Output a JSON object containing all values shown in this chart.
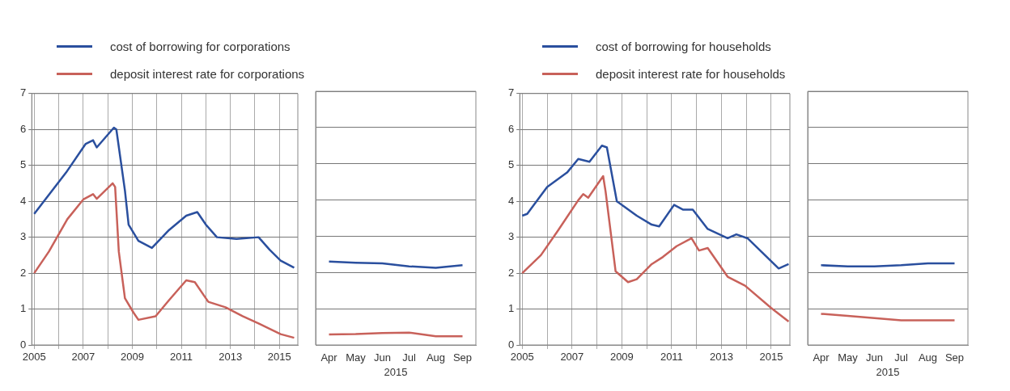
{
  "chart_data": [
    {
      "type": "line",
      "legend": "top",
      "grid": true,
      "xlim": [
        2004.9,
        2015.75
      ],
      "ylim": [
        0,
        7
      ],
      "yticks": [
        0,
        1,
        2,
        3,
        4,
        5,
        6,
        7
      ],
      "xticks": [
        2005,
        {
          "value": 2006,
          "label": null
        },
        2007,
        {
          "value": 2008,
          "label": null
        },
        2009,
        {
          "value": 2010,
          "label": null
        },
        2011,
        {
          "value": 2012,
          "label": null
        },
        2013,
        {
          "value": 2014,
          "label": null
        },
        2015
      ],
      "series": [
        {
          "name": "cost of borrowing for corporations",
          "color": "#2a4f9e",
          "x": [
            2005.0,
            2006.3,
            2007.1,
            2007.4,
            2007.55,
            2008.25,
            2008.35,
            2008.7,
            2008.85,
            2009.25,
            2009.8,
            2010.5,
            2011.2,
            2011.65,
            2012.0,
            2012.45,
            2013.25,
            2014.15,
            2014.6,
            2015.05,
            2015.6
          ],
          "values": [
            3.65,
            4.8,
            5.6,
            5.7,
            5.5,
            6.05,
            6.0,
            4.3,
            3.35,
            2.9,
            2.7,
            3.2,
            3.6,
            3.7,
            3.35,
            3.0,
            2.95,
            3.0,
            2.65,
            2.35,
            2.15
          ]
        },
        {
          "name": "deposit interest rate for corporations",
          "color": "#c8615a",
          "x": [
            2005.0,
            2005.6,
            2006.35,
            2007.0,
            2007.4,
            2007.55,
            2008.2,
            2008.3,
            2008.45,
            2008.7,
            2009.05,
            2009.25,
            2009.95,
            2010.5,
            2011.2,
            2011.55,
            2012.1,
            2012.8,
            2013.5,
            2014.15,
            2015.05,
            2015.6
          ],
          "values": [
            2.0,
            2.6,
            3.5,
            4.05,
            4.2,
            4.07,
            4.5,
            4.4,
            2.6,
            1.3,
            0.9,
            0.7,
            0.8,
            1.25,
            1.8,
            1.75,
            1.2,
            1.05,
            0.8,
            0.6,
            0.3,
            0.2
          ]
        }
      ]
    },
    {
      "type": "line",
      "grid": "y",
      "tick_labels": "x",
      "xlabel": "2015",
      "ylim": [
        0,
        7
      ],
      "yticks": [
        0,
        1,
        2,
        3,
        4,
        5,
        6,
        7
      ],
      "categories": [
        "Apr",
        "May",
        "Jun",
        "Jul",
        "Aug",
        "Sep"
      ],
      "series": [
        {
          "color": "#2a4f9e",
          "values": [
            2.3,
            2.27,
            2.25,
            2.17,
            2.13,
            2.2
          ]
        },
        {
          "color": "#c8615a",
          "values": [
            0.29,
            0.3,
            0.33,
            0.34,
            0.24,
            0.24
          ]
        }
      ]
    },
    {
      "type": "line",
      "legend": "top",
      "grid": true,
      "xlim": [
        2004.9,
        2015.75
      ],
      "ylim": [
        0,
        7
      ],
      "yticks": [
        0,
        1,
        2,
        3,
        4,
        5,
        6,
        7
      ],
      "xticks": [
        2005,
        {
          "value": 2006,
          "label": null
        },
        2007,
        {
          "value": 2008,
          "label": null
        },
        2009,
        {
          "value": 2010,
          "label": null
        },
        2011,
        {
          "value": 2012,
          "label": null
        },
        2013,
        {
          "value": 2014,
          "label": null
        },
        2015
      ],
      "series": [
        {
          "name": "cost of borrowing for households",
          "color": "#2a4f9e",
          "x": [
            2005.0,
            2005.2,
            2006.0,
            2006.8,
            2007.25,
            2007.7,
            2008.2,
            2008.4,
            2008.8,
            2009.6,
            2010.2,
            2010.5,
            2011.1,
            2011.45,
            2011.85,
            2012.45,
            2013.25,
            2013.6,
            2014.05,
            2015.3,
            2015.7
          ],
          "values": [
            3.6,
            3.65,
            4.4,
            4.8,
            5.18,
            5.1,
            5.55,
            5.5,
            4.0,
            3.6,
            3.35,
            3.3,
            3.9,
            3.77,
            3.77,
            3.23,
            2.97,
            3.08,
            2.97,
            2.13,
            2.25
          ]
        },
        {
          "name": "deposit interest rate for households",
          "color": "#c8615a",
          "x": [
            2005.0,
            2005.75,
            2006.45,
            2007.25,
            2007.45,
            2007.65,
            2008.25,
            2008.35,
            2008.75,
            2009.25,
            2009.6,
            2010.2,
            2010.65,
            2011.2,
            2011.8,
            2012.1,
            2012.45,
            2013.25,
            2013.95,
            2015.0,
            2015.7
          ],
          "values": [
            2.0,
            2.5,
            3.2,
            4.03,
            4.2,
            4.1,
            4.7,
            4.26,
            2.05,
            1.75,
            1.83,
            2.25,
            2.45,
            2.75,
            2.97,
            2.63,
            2.7,
            1.9,
            1.65,
            1.03,
            0.65
          ]
        }
      ]
    },
    {
      "type": "line",
      "grid": "y",
      "tick_labels": "x",
      "xlabel": "2015",
      "ylim": [
        0,
        7
      ],
      "yticks": [
        0,
        1,
        2,
        3,
        4,
        5,
        6,
        7
      ],
      "categories": [
        "Apr",
        "May",
        "Jun",
        "Jul",
        "Aug",
        "Sep"
      ],
      "series": [
        {
          "color": "#2a4f9e",
          "values": [
            2.2,
            2.17,
            2.17,
            2.2,
            2.25,
            2.25
          ]
        },
        {
          "color": "#c8615a",
          "values": [
            0.86,
            0.8,
            0.74,
            0.68,
            0.68,
            0.68
          ]
        }
      ]
    }
  ]
}
